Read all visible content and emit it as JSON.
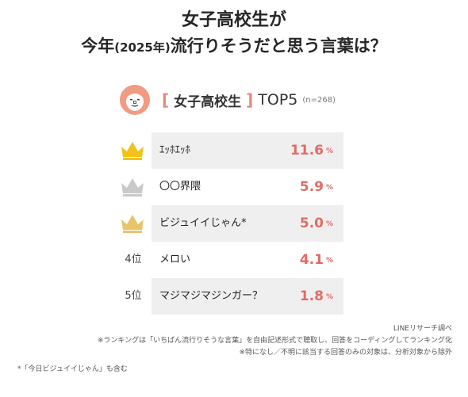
{
  "title": {
    "line1": "女子高校生が",
    "line2_a": "今年",
    "line2_small": "(2025年)",
    "line2_b": "流行りそうだと思う言葉は？"
  },
  "header": {
    "bracket_open": "[",
    "group": "女子高校生",
    "bracket_close": "]",
    "top": "TOP5",
    "n": "(n=268)"
  },
  "colors": {
    "accent": "#e06c66",
    "bracket": "#e58a7f",
    "gold": "#f2c21b",
    "silver": "#c9c9c9",
    "bronze": "#e8c46a",
    "row_alt": "#efefef"
  },
  "chart_data": {
    "type": "table",
    "unit": "%",
    "rows": [
      {
        "rank_label": "1",
        "icon": "gold-crown-icon",
        "name": "ｴｯﾎｴｯﾎ",
        "value": 11.6,
        "value_text": "11.6"
      },
      {
        "rank_label": "2",
        "icon": "silver-crown-icon",
        "name": "〇〇界隈",
        "value": 5.9,
        "value_text": "5.9"
      },
      {
        "rank_label": "3",
        "icon": "bronze-crown-icon",
        "name": "ビジュイイじゃん*",
        "value": 5.0,
        "value_text": "5.0"
      },
      {
        "rank_label": "4位",
        "icon": "",
        "name": "メロい",
        "value": 4.1,
        "value_text": "4.1"
      },
      {
        "rank_label": "5位",
        "icon": "",
        "name": "マジマジマジンガー？",
        "value": 1.8,
        "value_text": "1.8"
      }
    ]
  },
  "footnotes": {
    "source": "LINEリサーチ調べ",
    "note1": "※ランキングは「いちばん流行りそうな言葉」を自由記述形式で聴取し、回答をコーディングしてランキング化",
    "note2": "※特になし／不明に該当する回答のみの対象は、分析対象から除外",
    "note3": "*「今日ビジュイイじゃん」も含む"
  }
}
